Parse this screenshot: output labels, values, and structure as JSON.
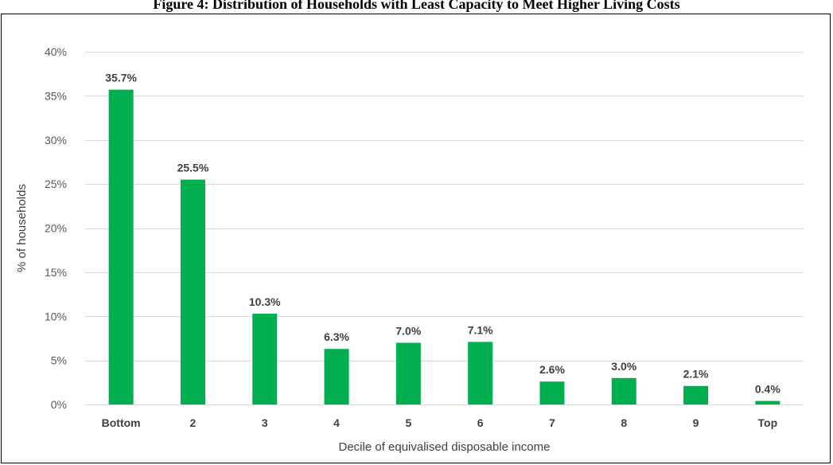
{
  "figure_title": "Figure 4: Distribution of Households with Least Capacity to Meet Higher Living Costs",
  "colors": {
    "bar": "#00b050",
    "grid": "#d9d9d9",
    "text": "#404040"
  },
  "chart_data": {
    "type": "bar",
    "categories": [
      "Bottom",
      "2",
      "3",
      "4",
      "5",
      "6",
      "7",
      "8",
      "9",
      "Top"
    ],
    "values": [
      35.7,
      25.5,
      10.3,
      6.3,
      7.0,
      7.1,
      2.6,
      3.0,
      2.1,
      0.4
    ],
    "value_labels": [
      "35.7%",
      "25.5%",
      "10.3%",
      "6.3%",
      "7.0%",
      "7.1%",
      "2.6%",
      "3.0%",
      "2.1%",
      "0.4%"
    ],
    "xlabel": "Decile of equivalised disposable income",
    "ylabel": "% of households",
    "ylim": [
      0,
      40
    ],
    "yticks": [
      0,
      5,
      10,
      15,
      20,
      25,
      30,
      35,
      40
    ],
    "ytick_labels": [
      "0%",
      "5%",
      "10%",
      "15%",
      "20%",
      "25%",
      "30%",
      "35%",
      "40%"
    ],
    "grid": true,
    "legend": "none"
  }
}
